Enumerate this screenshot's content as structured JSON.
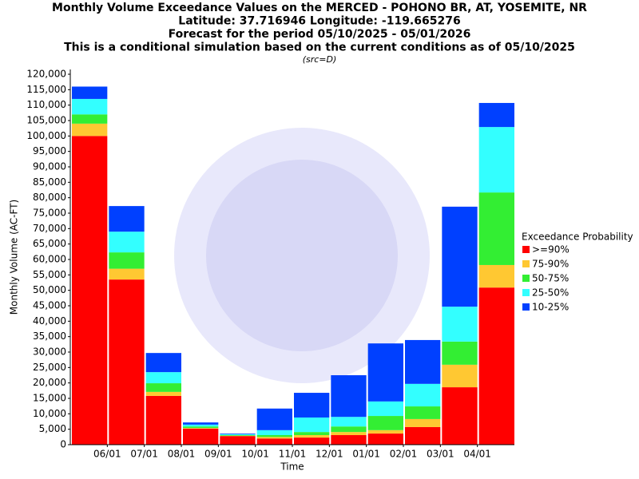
{
  "chart_data": {
    "type": "stacked_bar",
    "title": [
      "Monthly Volume Exceedance Values on the MERCED - POHONO BR, AT, YOSEMITE, NR",
      "Latitude: 37.716946 Longitude: -119.665276",
      "Forecast for the period 05/10/2025 - 05/01/2026",
      "This is a conditional simulation based on the current conditions as of 05/10/2025"
    ],
    "subtitle": "(src=D)",
    "x_label": "Time",
    "y_label": "Monthly Volume (AC-FT)",
    "legend_title": "Exceedance Probability",
    "legend_position": "right",
    "categories": [
      null,
      "06/01",
      "07/01",
      "08/01",
      "09/01",
      "10/01",
      "11/01",
      "12/01",
      "01/01",
      "02/01",
      "03/01",
      "04/01"
    ],
    "series": [
      {
        "name": ">=90%",
        "color": "#ff0000",
        "values": [
          100000,
          53500,
          15800,
          5200,
          2800,
          2000,
          2300,
          3100,
          3600,
          5700,
          18600,
          50900
        ]
      },
      {
        "name": "75-90%",
        "color": "#ffc832",
        "values": [
          4000,
          3500,
          1300,
          200,
          100,
          500,
          800,
          1000,
          1100,
          2600,
          7300,
          7300
        ]
      },
      {
        "name": "50-75%",
        "color": "#33ee33",
        "values": [
          3000,
          5300,
          2800,
          500,
          200,
          600,
          1000,
          1800,
          4600,
          4100,
          7500,
          23500
        ]
      },
      {
        "name": "25-50%",
        "color": "#33ffff",
        "values": [
          5000,
          6700,
          3600,
          600,
          300,
          1600,
          4700,
          3100,
          4700,
          7300,
          11300,
          21200
        ]
      },
      {
        "name": "10-25%",
        "color": "#0040ff",
        "values": [
          4000,
          8300,
          6200,
          700,
          200,
          7000,
          8000,
          13500,
          18800,
          14200,
          32400,
          7800
        ]
      }
    ],
    "ylim": [
      0,
      120000
    ],
    "yticks": [
      0,
      {
        "value": 5000,
        "label": "5,000"
      },
      {
        "value": 10000,
        "label": "10,000"
      },
      {
        "value": 15000,
        "label": "15,000"
      },
      {
        "value": 20000,
        "label": "20,000"
      },
      {
        "value": 25000,
        "label": "25,000"
      },
      {
        "value": 30000,
        "label": "30,000"
      },
      {
        "value": 35000,
        "label": "35,000"
      },
      {
        "value": 40000,
        "label": "40,000"
      },
      {
        "value": 45000,
        "label": "45,000"
      },
      {
        "value": 50000,
        "label": "50,000"
      },
      {
        "value": 55000,
        "label": "55,000"
      },
      {
        "value": 60000,
        "label": "60,000"
      },
      {
        "value": 65000,
        "label": "65,000"
      },
      {
        "value": 70000,
        "label": "70,000"
      },
      {
        "value": 75000,
        "label": "75,000"
      },
      {
        "value": 80000,
        "label": "80,000"
      },
      {
        "value": 85000,
        "label": "85,000"
      },
      {
        "value": 90000,
        "label": "90,000"
      },
      {
        "value": 95000,
        "label": "95,000"
      },
      {
        "value": 100000,
        "label": "100,000"
      },
      {
        "value": 105000,
        "label": "105,000"
      },
      {
        "value": 110000,
        "label": "110,000"
      },
      {
        "value": 115000,
        "label": "115,000"
      },
      {
        "value": 120000,
        "label": "120,000"
      }
    ],
    "grid": false
  }
}
